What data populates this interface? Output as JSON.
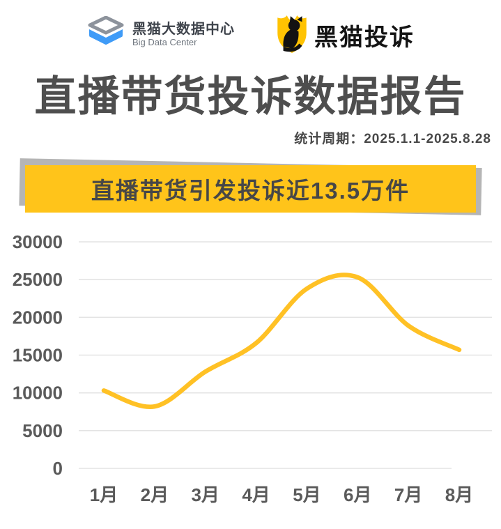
{
  "header": {
    "left_logo": {
      "title": "黑猫大数据中心",
      "subtitle": "Big Data Center"
    },
    "right_logo": {
      "title": "黑猫投诉"
    }
  },
  "title": "直播带货投诉数据报告",
  "period": "统计周期：2025.1.1-2025.8.28",
  "banner": "直播带货引发投诉近13.5万件",
  "colors": {
    "banner_yellow": "#ffc41a",
    "banner_shadow_gray": "#b5b5b5",
    "line_yellow": "#ffc125",
    "shield_yellow": "#ffc302",
    "logo_blue": "#3f9bf7",
    "dark_text": "#4e4e4e",
    "gridline_gray": "#e4e4e4",
    "axis_label_gray": "#5a5a5a"
  },
  "chart_data": {
    "type": "line",
    "categories": [
      "1月",
      "2月",
      "3月",
      "4月",
      "5月",
      "6月",
      "7月",
      "8月"
    ],
    "values": [
      10300,
      8200,
      12800,
      16600,
      23800,
      25300,
      18900,
      15700
    ],
    "yticks": [
      0,
      5000,
      10000,
      15000,
      20000,
      25000,
      30000
    ],
    "ylim": [
      0,
      30000
    ],
    "xlabel": "",
    "ylabel": "",
    "grid": "horizontal",
    "legend": "none",
    "smooth": true,
    "line_color": "#ffc125"
  }
}
